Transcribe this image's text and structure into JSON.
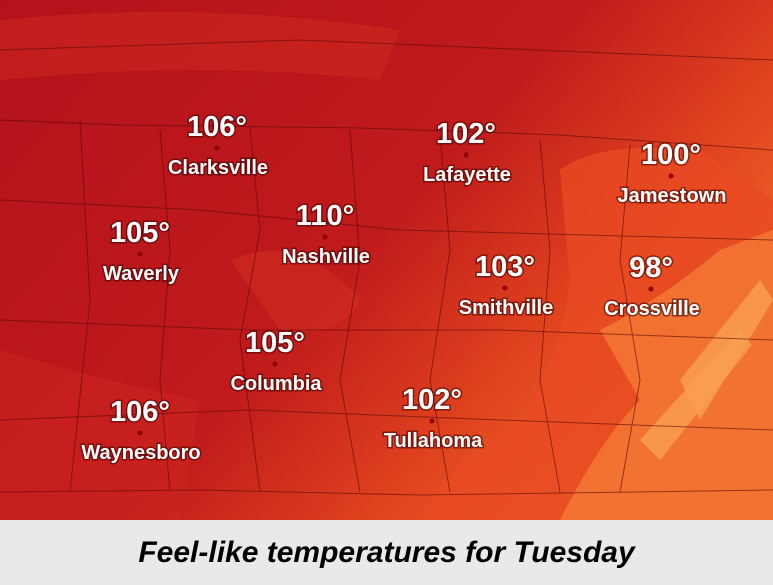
{
  "cities": [
    {
      "name": "Clarksville",
      "temp": "106°"
    },
    {
      "name": "Lafayette",
      "temp": "102°"
    },
    {
      "name": "Jamestown",
      "temp": "100°"
    },
    {
      "name": "Waverly",
      "temp": "105°"
    },
    {
      "name": "Nashville",
      "temp": "110°"
    },
    {
      "name": "Smithville",
      "temp": "103°"
    },
    {
      "name": "Crossville",
      "temp": "98°"
    },
    {
      "name": "Columbia",
      "temp": "105°"
    },
    {
      "name": "Waynesboro",
      "temp": "106°"
    },
    {
      "name": "Tullahoma",
      "temp": "102°"
    }
  ],
  "caption": "Feel-like temperatures for Tuesday"
}
